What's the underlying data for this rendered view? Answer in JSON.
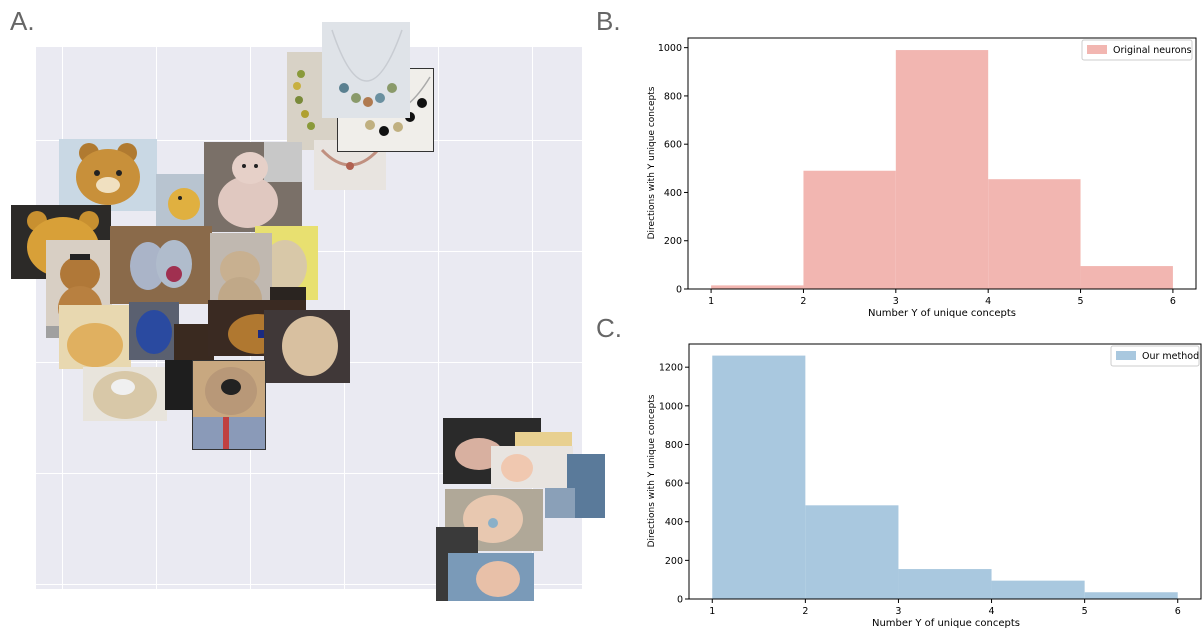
{
  "panels": {
    "a_label": "A.",
    "b_label": "B.",
    "c_label": "C."
  },
  "embedding_panel": {
    "clusters": [
      "teddy-bear images",
      "necklace images",
      "baby images"
    ],
    "colors": {
      "background": "#eaeaf2",
      "grid": "#ffffff"
    }
  },
  "chart_data": [
    {
      "type": "bar",
      "panel": "B",
      "bin_edges": [
        1,
        2,
        3,
        4,
        5,
        6
      ],
      "values": [
        15,
        490,
        990,
        455,
        95
      ],
      "series": [
        {
          "name": "Original neurons",
          "values": [
            15,
            490,
            990,
            455,
            95
          ]
        }
      ],
      "xlabel": "Number Y of unique concepts",
      "ylabel": "Directions with Y unique concepts",
      "ylim": [
        0,
        1040
      ],
      "xlim": [
        0.75,
        6.25
      ],
      "yticks": [
        0,
        200,
        400,
        600,
        800,
        1000
      ],
      "xticks": [
        1,
        2,
        3,
        4,
        5,
        6
      ],
      "legend_position": "top-right",
      "grid": false,
      "color": "#f2b6b1"
    },
    {
      "type": "bar",
      "panel": "C",
      "bin_edges": [
        1,
        2,
        3,
        4,
        5,
        6
      ],
      "values": [
        1260,
        485,
        155,
        95,
        35
      ],
      "series": [
        {
          "name": "Our method",
          "values": [
            1260,
            485,
            155,
            95,
            35
          ]
        }
      ],
      "xlabel": "Number Y of unique concepts",
      "ylabel": "Directions with Y unique concepts",
      "ylim": [
        0,
        1320
      ],
      "xlim": [
        0.75,
        6.25
      ],
      "yticks": [
        0,
        200,
        400,
        600,
        800,
        1000,
        1200
      ],
      "xticks": [
        1,
        2,
        3,
        4,
        5,
        6
      ],
      "legend_position": "top-right",
      "grid": false,
      "color": "#a9c8df"
    }
  ]
}
